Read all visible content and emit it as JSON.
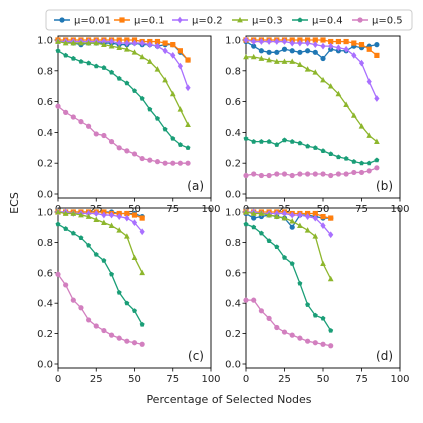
{
  "figure": {
    "xlabel": "Percentage of Selected Nodes",
    "ylabel": "ECS"
  },
  "legend": {
    "placement": "top",
    "entries": [
      "μ=0.01",
      "μ=0.1",
      "μ=0.2",
      "μ=0.3",
      "μ=0.4",
      "μ=0.5"
    ]
  },
  "series_styles": [
    {
      "name": "μ=0.01",
      "color": "#1f77b4",
      "marker": "circle"
    },
    {
      "name": "μ=0.1",
      "color": "#ff7f0e",
      "marker": "square"
    },
    {
      "name": "μ=0.2",
      "color": "#a970ff",
      "marker": "diamond"
    },
    {
      "name": "μ=0.3",
      "color": "#8db62c",
      "marker": "triangle"
    },
    {
      "name": "μ=0.4",
      "color": "#1a9e77",
      "marker": "pentagon"
    },
    {
      "name": "μ=0.5",
      "color": "#d27fbf",
      "marker": "circle"
    }
  ],
  "chart_data": [
    {
      "type": "line",
      "panel_label": "(a)",
      "xlim": [
        0,
        100
      ],
      "ylim": [
        0,
        1.0
      ],
      "xticks": [
        "0",
        "25",
        "50",
        "75",
        "100"
      ],
      "yticks": [
        "0.0",
        "0.2",
        "0.4",
        "0.6",
        "0.8",
        "1.0"
      ],
      "grid": false,
      "series": [
        {
          "name": "μ=0.01",
          "x": [
            0,
            5,
            10,
            15,
            20,
            25,
            30,
            35,
            40,
            45,
            50,
            55,
            60,
            65,
            70,
            75,
            80,
            85
          ],
          "y": [
            0.99,
            0.99,
            0.98,
            0.97,
            0.98,
            0.98,
            0.98,
            0.98,
            0.97,
            0.97,
            0.98,
            0.97,
            0.97,
            0.96,
            0.97,
            0.97,
            0.92,
            0.87
          ]
        },
        {
          "name": "μ=0.1",
          "x": [
            0,
            5,
            10,
            15,
            20,
            25,
            30,
            35,
            40,
            45,
            50,
            55,
            60,
            65,
            70,
            75,
            80,
            85
          ],
          "y": [
            1.0,
            1.0,
            1.0,
            1.0,
            1.0,
            1.0,
            1.0,
            1.0,
            1.0,
            1.0,
            1.0,
            0.99,
            0.99,
            0.99,
            0.98,
            0.97,
            0.93,
            0.87
          ]
        },
        {
          "name": "μ=0.2",
          "x": [
            0,
            5,
            10,
            15,
            20,
            25,
            30,
            35,
            40,
            45,
            50,
            55,
            60,
            65,
            70,
            75,
            80,
            85
          ],
          "y": [
            0.99,
            0.99,
            0.99,
            0.99,
            0.99,
            0.99,
            0.99,
            0.99,
            0.98,
            0.98,
            0.98,
            0.98,
            0.97,
            0.96,
            0.93,
            0.9,
            0.83,
            0.69
          ]
        },
        {
          "name": "μ=0.3",
          "x": [
            0,
            5,
            10,
            15,
            20,
            25,
            30,
            35,
            40,
            45,
            50,
            55,
            60,
            65,
            70,
            75,
            80,
            85
          ],
          "y": [
            0.99,
            0.98,
            0.98,
            0.98,
            0.98,
            0.98,
            0.97,
            0.96,
            0.95,
            0.94,
            0.92,
            0.89,
            0.86,
            0.81,
            0.74,
            0.65,
            0.55,
            0.45
          ]
        },
        {
          "name": "μ=0.4",
          "x": [
            0,
            5,
            10,
            15,
            20,
            25,
            30,
            35,
            40,
            45,
            50,
            55,
            60,
            65,
            70,
            75,
            80,
            85
          ],
          "y": [
            0.93,
            0.9,
            0.88,
            0.86,
            0.85,
            0.83,
            0.82,
            0.79,
            0.75,
            0.72,
            0.67,
            0.62,
            0.55,
            0.49,
            0.42,
            0.36,
            0.32,
            0.3
          ]
        },
        {
          "name": "μ=0.5",
          "x": [
            0,
            5,
            10,
            15,
            20,
            25,
            30,
            35,
            40,
            45,
            50,
            55,
            60,
            65,
            70,
            75,
            80,
            85
          ],
          "y": [
            0.57,
            0.53,
            0.5,
            0.47,
            0.44,
            0.39,
            0.38,
            0.34,
            0.3,
            0.28,
            0.26,
            0.23,
            0.22,
            0.21,
            0.2,
            0.2,
            0.2,
            0.2
          ]
        }
      ]
    },
    {
      "type": "line",
      "panel_label": "(b)",
      "xlim": [
        0,
        100
      ],
      "ylim": [
        0,
        1.0
      ],
      "xticks": [
        "0",
        "25",
        "50",
        "75",
        "100"
      ],
      "yticks": [
        "0.0",
        "0.2",
        "0.4",
        "0.6",
        "0.8",
        "1.0"
      ],
      "grid": false,
      "series": [
        {
          "name": "μ=0.01",
          "x": [
            0,
            5,
            10,
            15,
            20,
            25,
            30,
            35,
            40,
            45,
            50,
            55,
            60,
            65,
            70,
            75,
            80,
            85
          ],
          "y": [
            0.99,
            0.96,
            0.93,
            0.92,
            0.92,
            0.94,
            0.93,
            0.92,
            0.93,
            0.92,
            0.88,
            0.94,
            0.93,
            0.93,
            0.96,
            0.95,
            0.96,
            0.97
          ]
        },
        {
          "name": "μ=0.1",
          "x": [
            0,
            5,
            10,
            15,
            20,
            25,
            30,
            35,
            40,
            45,
            50,
            55,
            60,
            65,
            70,
            75,
            80,
            85
          ],
          "y": [
            1.0,
            1.0,
            1.0,
            1.0,
            1.0,
            1.0,
            1.0,
            1.0,
            1.0,
            1.0,
            1.0,
            0.99,
            0.99,
            0.99,
            0.98,
            0.97,
            0.94,
            0.9
          ]
        },
        {
          "name": "μ=0.2",
          "x": [
            0,
            5,
            10,
            15,
            20,
            25,
            30,
            35,
            40,
            45,
            50,
            55,
            60,
            65,
            70,
            75,
            80,
            85
          ],
          "y": [
            1.0,
            0.99,
            0.99,
            0.99,
            0.99,
            0.99,
            0.98,
            0.98,
            0.98,
            0.97,
            0.96,
            0.96,
            0.95,
            0.94,
            0.9,
            0.85,
            0.73,
            0.62
          ]
        },
        {
          "name": "μ=0.3",
          "x": [
            0,
            5,
            10,
            15,
            20,
            25,
            30,
            35,
            40,
            45,
            50,
            55,
            60,
            65,
            70,
            75,
            80,
            85
          ],
          "y": [
            0.89,
            0.89,
            0.88,
            0.87,
            0.86,
            0.86,
            0.86,
            0.84,
            0.81,
            0.79,
            0.74,
            0.7,
            0.65,
            0.58,
            0.51,
            0.44,
            0.38,
            0.34
          ]
        },
        {
          "name": "μ=0.4",
          "x": [
            0,
            5,
            10,
            15,
            20,
            25,
            30,
            35,
            40,
            45,
            50,
            55,
            60,
            65,
            70,
            75,
            80,
            85
          ],
          "y": [
            0.36,
            0.34,
            0.34,
            0.34,
            0.32,
            0.35,
            0.34,
            0.33,
            0.31,
            0.3,
            0.28,
            0.26,
            0.24,
            0.23,
            0.21,
            0.2,
            0.2,
            0.22
          ]
        },
        {
          "name": "μ=0.5",
          "x": [
            0,
            5,
            10,
            15,
            20,
            25,
            30,
            35,
            40,
            45,
            50,
            55,
            60,
            65,
            70,
            75,
            80,
            85
          ],
          "y": [
            0.12,
            0.13,
            0.12,
            0.12,
            0.13,
            0.13,
            0.12,
            0.13,
            0.13,
            0.13,
            0.13,
            0.12,
            0.13,
            0.13,
            0.14,
            0.14,
            0.15,
            0.17
          ]
        }
      ]
    },
    {
      "type": "line",
      "panel_label": "(c)",
      "xlim": [
        0,
        100
      ],
      "ylim": [
        0,
        1.0
      ],
      "xticks": [
        "0",
        "25",
        "50",
        "75",
        "100"
      ],
      "yticks": [
        "0.0",
        "0.2",
        "0.4",
        "0.6",
        "0.8",
        "1.0"
      ],
      "grid": false,
      "series": [
        {
          "name": "μ=0.01",
          "x": [
            0,
            5,
            10,
            15,
            20,
            25,
            30,
            35,
            40,
            45,
            50,
            55
          ],
          "y": [
            1.0,
            1.0,
            1.0,
            1.0,
            1.0,
            1.0,
            1.0,
            1.0,
            0.99,
            0.99,
            0.99,
            0.97
          ]
        },
        {
          "name": "μ=0.1",
          "x": [
            0,
            5,
            10,
            15,
            20,
            25,
            30,
            35,
            40,
            45,
            50,
            55
          ],
          "y": [
            1.0,
            1.0,
            1.0,
            1.0,
            1.0,
            1.0,
            1.0,
            0.99,
            0.99,
            0.99,
            0.98,
            0.96
          ]
        },
        {
          "name": "μ=0.2",
          "x": [
            0,
            5,
            10,
            15,
            20,
            25,
            30,
            35,
            40,
            45,
            50,
            55
          ],
          "y": [
            1.0,
            1.0,
            0.99,
            0.99,
            0.99,
            0.99,
            0.98,
            0.98,
            0.97,
            0.96,
            0.93,
            0.87
          ]
        },
        {
          "name": "μ=0.3",
          "x": [
            0,
            5,
            10,
            15,
            20,
            25,
            30,
            35,
            40,
            45,
            50,
            55
          ],
          "y": [
            1.0,
            0.99,
            0.99,
            0.98,
            0.97,
            0.95,
            0.93,
            0.91,
            0.88,
            0.84,
            0.7,
            0.6
          ]
        },
        {
          "name": "μ=0.4",
          "x": [
            0,
            5,
            10,
            15,
            20,
            25,
            30,
            35,
            40,
            45,
            50,
            55
          ],
          "y": [
            0.92,
            0.89,
            0.86,
            0.83,
            0.78,
            0.72,
            0.68,
            0.59,
            0.47,
            0.4,
            0.35,
            0.26
          ]
        },
        {
          "name": "μ=0.5",
          "x": [
            0,
            5,
            10,
            15,
            20,
            25,
            30,
            35,
            40,
            45,
            50,
            55
          ],
          "y": [
            0.59,
            0.52,
            0.42,
            0.37,
            0.29,
            0.25,
            0.22,
            0.19,
            0.17,
            0.15,
            0.14,
            0.13
          ]
        }
      ]
    },
    {
      "type": "line",
      "panel_label": "(d)",
      "xlim": [
        0,
        100
      ],
      "ylim": [
        0,
        1.0
      ],
      "xticks": [
        "0",
        "25",
        "50",
        "75",
        "100"
      ],
      "yticks": [
        "0.0",
        "0.2",
        "0.4",
        "0.6",
        "0.8",
        "1.0"
      ],
      "grid": false,
      "series": [
        {
          "name": "μ=0.01",
          "x": [
            0,
            5,
            10,
            15,
            20,
            25,
            30,
            35,
            40,
            45,
            50,
            55
          ],
          "y": [
            0.99,
            0.96,
            0.97,
            0.98,
            0.97,
            0.96,
            0.9,
            0.98,
            0.98,
            0.97,
            0.96,
            0.96
          ]
        },
        {
          "name": "μ=0.1",
          "x": [
            0,
            5,
            10,
            15,
            20,
            25,
            30,
            35,
            40,
            45,
            50,
            55
          ],
          "y": [
            1.0,
            1.0,
            1.0,
            1.0,
            1.0,
            1.0,
            0.99,
            0.99,
            0.99,
            0.99,
            0.97,
            0.96
          ]
        },
        {
          "name": "μ=0.2",
          "x": [
            0,
            5,
            10,
            15,
            20,
            25,
            30,
            35,
            40,
            45,
            50,
            55
          ],
          "y": [
            1.0,
            1.0,
            0.99,
            0.99,
            0.99,
            0.99,
            0.98,
            0.98,
            0.97,
            0.96,
            0.91,
            0.85
          ]
        },
        {
          "name": "μ=0.3",
          "x": [
            0,
            5,
            10,
            15,
            20,
            25,
            30,
            35,
            40,
            45,
            50,
            55
          ],
          "y": [
            1.0,
            0.99,
            0.99,
            0.98,
            0.97,
            0.96,
            0.94,
            0.91,
            0.88,
            0.84,
            0.66,
            0.56
          ]
        },
        {
          "name": "μ=0.4",
          "x": [
            0,
            5,
            10,
            15,
            20,
            25,
            30,
            35,
            40,
            45,
            50,
            55
          ],
          "y": [
            0.92,
            0.9,
            0.86,
            0.81,
            0.77,
            0.7,
            0.66,
            0.53,
            0.39,
            0.32,
            0.3,
            0.22
          ]
        },
        {
          "name": "μ=0.5",
          "x": [
            0,
            5,
            10,
            15,
            20,
            25,
            30,
            35,
            40,
            45,
            50,
            55
          ],
          "y": [
            0.42,
            0.42,
            0.35,
            0.3,
            0.24,
            0.21,
            0.19,
            0.17,
            0.15,
            0.14,
            0.13,
            0.12
          ]
        }
      ]
    }
  ]
}
